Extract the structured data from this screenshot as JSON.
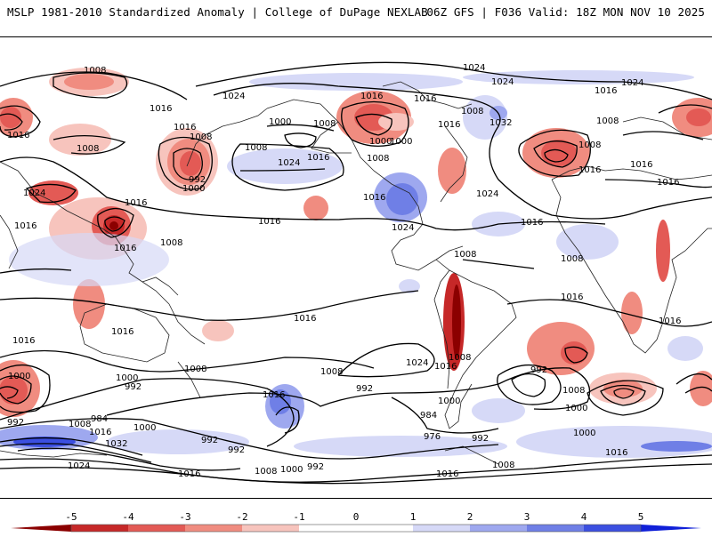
{
  "header": {
    "left": "MSLP 1981-2010 Standardized Anomaly | College of DuPage NEXLAB",
    "right": "06Z GFS | F036 Valid: 18Z MON NOV 10 2025"
  },
  "colorbar": {
    "ticks": [
      "-5",
      "-4",
      "-3",
      "-2",
      "-1",
      "0",
      "1",
      "2",
      "3",
      "4",
      "5"
    ],
    "colors": [
      "#8b0000",
      "#c62828",
      "#e35a55",
      "#f08c80",
      "#f7c4bd",
      "#ffffff",
      "#d6d9f7",
      "#9ea8ef",
      "#6f7fe6",
      "#3b4fe0",
      "#1020d8"
    ]
  },
  "isobar_labels": [
    {
      "text": "1008"
    },
    {
      "text": "1024"
    },
    {
      "text": "1024"
    },
    {
      "text": "1024"
    },
    {
      "text": "1016"
    },
    {
      "text": "1024"
    },
    {
      "text": "1016"
    },
    {
      "text": "1016"
    },
    {
      "text": "1032"
    },
    {
      "text": "1008"
    },
    {
      "text": "1016"
    },
    {
      "text": "1008"
    },
    {
      "text": "1008"
    },
    {
      "text": "1000"
    },
    {
      "text": "1008"
    },
    {
      "text": "1016"
    },
    {
      "text": "1008"
    },
    {
      "text": "1000"
    },
    {
      "text": "1016"
    },
    {
      "text": "1016"
    },
    {
      "text": "1024"
    },
    {
      "text": "1016"
    },
    {
      "text": "1008"
    },
    {
      "text": "1008"
    },
    {
      "text": "992"
    },
    {
      "text": "1000"
    },
    {
      "text": "1024"
    },
    {
      "text": "1008"
    },
    {
      "text": "1016"
    },
    {
      "text": "1016"
    },
    {
      "text": "1024"
    },
    {
      "text": "1016"
    },
    {
      "text": "1016"
    },
    {
      "text": "1016"
    },
    {
      "text": "1024"
    },
    {
      "text": "1008"
    },
    {
      "text": "1016"
    },
    {
      "text": "1016"
    },
    {
      "text": "1008"
    },
    {
      "text": "1016"
    },
    {
      "text": "1016"
    },
    {
      "text": "1016"
    },
    {
      "text": "1016"
    },
    {
      "text": "1024"
    },
    {
      "text": "1016"
    },
    {
      "text": "1008"
    },
    {
      "text": "992"
    },
    {
      "text": "1008"
    },
    {
      "text": "1000"
    },
    {
      "text": "1008"
    },
    {
      "text": "1000"
    },
    {
      "text": "992"
    },
    {
      "text": "1016"
    },
    {
      "text": "992"
    },
    {
      "text": "992"
    },
    {
      "text": "984"
    },
    {
      "text": "1008"
    },
    {
      "text": "1016"
    },
    {
      "text": "1000"
    },
    {
      "text": "1032"
    },
    {
      "text": "992"
    },
    {
      "text": "992"
    },
    {
      "text": "1000"
    },
    {
      "text": "984"
    },
    {
      "text": "976"
    },
    {
      "text": "992"
    },
    {
      "text": "1000"
    },
    {
      "text": "1008"
    },
    {
      "text": "1024"
    },
    {
      "text": "1016"
    },
    {
      "text": "1008"
    },
    {
      "text": "1000"
    },
    {
      "text": "992"
    },
    {
      "text": "1016"
    },
    {
      "text": "1016"
    },
    {
      "text": "1008"
    },
    {
      "text": "1016"
    },
    {
      "text": "1016"
    },
    {
      "text": "1000"
    },
    {
      "text": "1000"
    },
    {
      "text": "1016"
    },
    {
      "text": "1008"
    }
  ]
}
